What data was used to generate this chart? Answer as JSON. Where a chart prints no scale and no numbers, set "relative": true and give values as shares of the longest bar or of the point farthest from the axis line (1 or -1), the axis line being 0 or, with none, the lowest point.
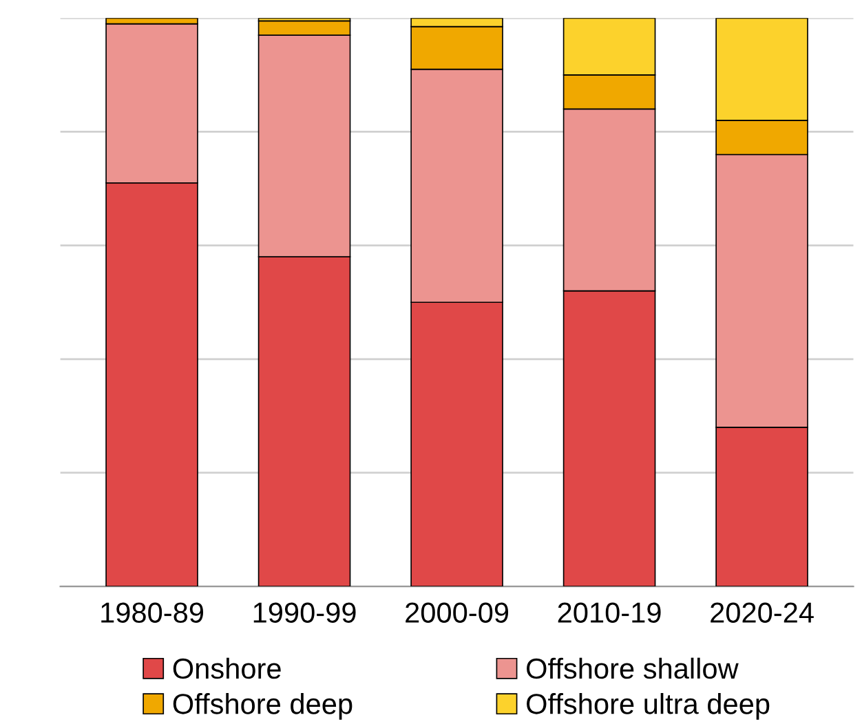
{
  "chart_data": {
    "type": "bar",
    "stacked": true,
    "relative": true,
    "grid": "y",
    "legend": "bottom",
    "categories": [
      "1980-89",
      "1990-99",
      "2000-09",
      "2010-19",
      "2020-24"
    ],
    "series": [
      {
        "name": "Onshore",
        "color": "#e04848",
        "values": [
          0.71,
          0.58,
          0.5,
          0.52,
          0.28
        ]
      },
      {
        "name": "Offshore shallow",
        "color": "#ec9490",
        "values": [
          0.28,
          0.39,
          0.41,
          0.32,
          0.48
        ]
      },
      {
        "name": "Offshore deep",
        "color": "#f0a800",
        "values": [
          0.01,
          0.025,
          0.075,
          0.06,
          0.06
        ]
      },
      {
        "name": "Offshore ultra deep",
        "color": "#fcd22c",
        "values": [
          null,
          0.005,
          0.015,
          0.1,
          0.18
        ]
      }
    ]
  }
}
